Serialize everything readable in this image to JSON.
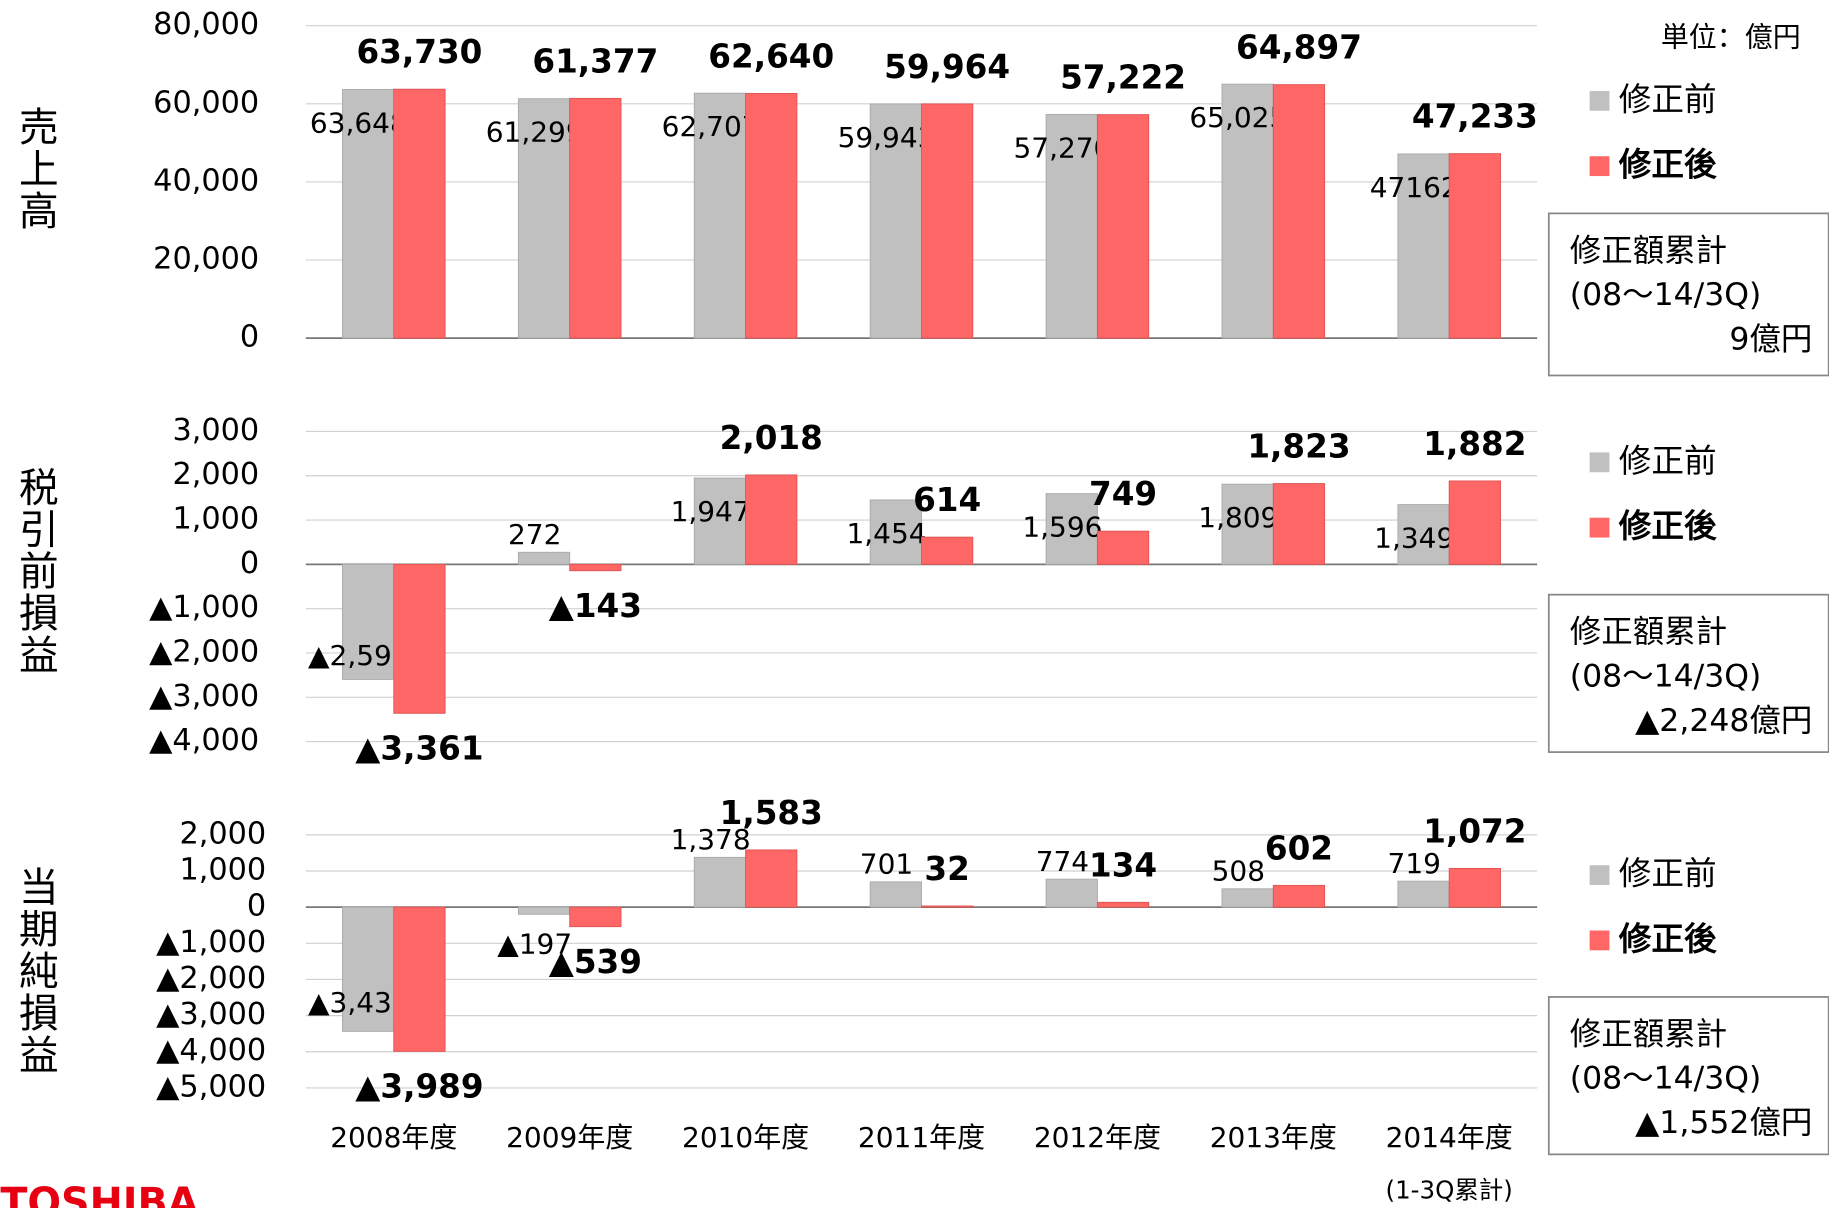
{
  "logo": "TOSHIBA",
  "chart_data": [
    {
      "type": "bar",
      "title": "売上高",
      "unit": "単位：億円",
      "ylim": [
        0,
        80000
      ],
      "yticks": [
        0,
        {
          "value": 20000,
          "label": "20,000"
        },
        {
          "value": 40000,
          "label": "40,000"
        },
        {
          "value": 60000,
          "label": "60,000"
        },
        {
          "value": 80000,
          "label": "80,000"
        }
      ],
      "series": [
        {
          "name": "修正前",
          "color": "#c0c0c0",
          "values": [
            63648,
            61299,
            62707,
            59943,
            57270,
            65025,
            47162
          ],
          "value_labels": [
            "63,648",
            "61,299",
            "62,707",
            "59,943",
            "57,270",
            "65,025",
            "47162"
          ]
        },
        {
          "name": "修正後",
          "color": "#ff6666",
          "values": [
            63730,
            61377,
            62640,
            59964,
            57222,
            64897,
            47233
          ],
          "value_labels": [
            "63,730",
            "61,377",
            "62,640",
            "59,964",
            "57,222",
            "64,897",
            "47,233"
          ]
        }
      ],
      "note": [
        "修正額累計",
        "(08～14/3Q)",
        "9億円"
      ]
    },
    {
      "type": "bar",
      "title": "税引前損益",
      "ylim": [
        -4000,
        3000
      ],
      "yticks": [
        {
          "value": -4000,
          "label": "▲4,000"
        },
        {
          "value": -3000,
          "label": "▲3,000"
        },
        {
          "value": -2000,
          "label": "▲2,000"
        },
        {
          "value": -1000,
          "label": "▲1,000"
        },
        0,
        {
          "value": 1000,
          "label": "1,000"
        },
        {
          "value": 2000,
          "label": "2,000"
        },
        {
          "value": 3000,
          "label": "3,000"
        }
      ],
      "series": [
        {
          "name": "修正前",
          "color": "#c0c0c0",
          "values": [
            -2597,
            272,
            1947,
            1454,
            1596,
            1809,
            1349
          ],
          "value_labels": [
            "▲2,597",
            "272",
            "1,947",
            "1,454",
            "1,596",
            "1,809",
            "1,349"
          ]
        },
        {
          "name": "修正後",
          "color": "#ff6666",
          "values": [
            -3361,
            -143,
            2018,
            614,
            749,
            1823,
            1882
          ],
          "value_labels": [
            "▲3,361",
            "▲143",
            "2,018",
            "614",
            "749",
            "1,823",
            "1,882"
          ]
        }
      ],
      "note": [
        "修正額累計",
        "(08～14/3Q)",
        "▲2,248億円"
      ]
    },
    {
      "type": "bar",
      "title": "当期純損益",
      "categories": [
        "2008年度",
        "2009年度",
        "2010年度",
        "2011年度",
        "2012年度",
        "2013年度",
        "2014年度"
      ],
      "category_note": "(1-3Q累計)",
      "ylim": [
        -5000,
        2000
      ],
      "yticks": [
        {
          "value": -5000,
          "label": "▲5,000"
        },
        {
          "value": -4000,
          "label": "▲4,000"
        },
        {
          "value": -3000,
          "label": "▲3,000"
        },
        {
          "value": -2000,
          "label": "▲2,000"
        },
        {
          "value": -1000,
          "label": "▲1,000"
        },
        0,
        {
          "value": 1000,
          "label": "1,000"
        },
        {
          "value": 2000,
          "label": "2,000"
        }
      ],
      "series": [
        {
          "name": "修正前",
          "color": "#c0c0c0",
          "values": [
            -3436,
            -197,
            1378,
            701,
            774,
            508,
            719
          ],
          "value_labels": [
            "▲3,436",
            "▲197",
            "1,378",
            "701",
            "774",
            "508",
            "719"
          ]
        },
        {
          "name": "修正後",
          "color": "#ff6666",
          "values": [
            -3989,
            -539,
            1583,
            32,
            134,
            602,
            1072
          ],
          "value_labels": [
            "▲3,989",
            "▲539",
            "1,583",
            "32",
            "134",
            "602",
            "1,072"
          ]
        }
      ],
      "note": [
        "修正額累計",
        "(08～14/3Q)",
        "▲1,552億円"
      ]
    }
  ]
}
